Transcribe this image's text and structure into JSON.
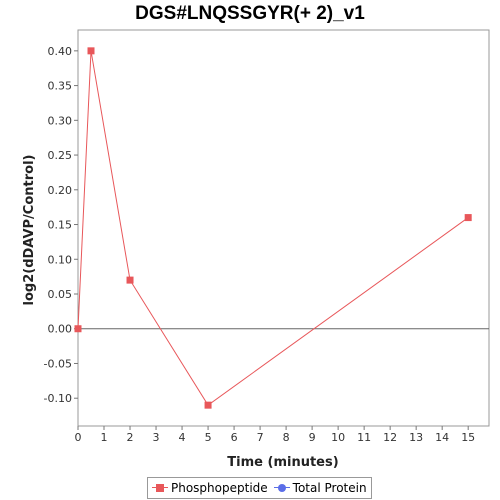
{
  "chart_data": {
    "type": "line",
    "title": "DGS#LNQSSGYR(+ 2)_v1",
    "xlabel": "Time (minutes)",
    "ylabel": "log2(dDAVP/Control)",
    "xlim": [
      0,
      15.8
    ],
    "ylim": [
      -0.14,
      0.43
    ],
    "x_ticks": [
      0,
      1,
      2,
      3,
      4,
      5,
      6,
      7,
      8,
      9,
      10,
      11,
      12,
      13,
      14,
      15
    ],
    "y_ticks": [
      -0.1,
      -0.05,
      0.0,
      0.05,
      0.1,
      0.15,
      0.2,
      0.25,
      0.3,
      0.35,
      0.4
    ],
    "y_tick_labels": [
      "-0.10",
      "-0.05",
      "0.00",
      "0.05",
      "0.10",
      "0.15",
      "0.20",
      "0.25",
      "0.30",
      "0.35",
      "0.40"
    ],
    "zero_line": true,
    "grid": false,
    "legend_position": "bottom",
    "series": [
      {
        "name": "Phosphopeptide",
        "color": "#e8575a",
        "marker": "square",
        "x": [
          0,
          0.5,
          2,
          5,
          15
        ],
        "y": [
          0.0,
          0.4,
          0.07,
          -0.11,
          0.16
        ]
      },
      {
        "name": "Total Protein",
        "color": "#5b6ee8",
        "marker": "circle",
        "x": [],
        "y": []
      }
    ]
  }
}
